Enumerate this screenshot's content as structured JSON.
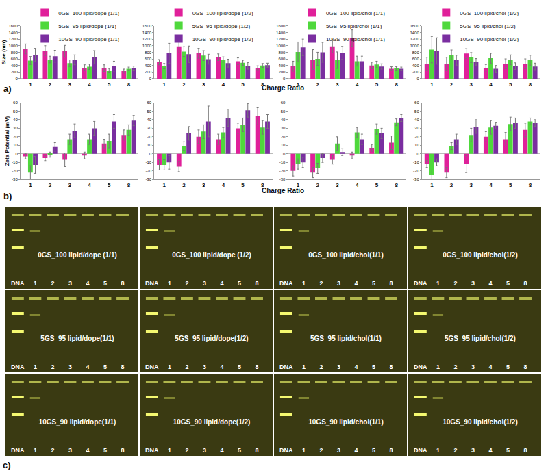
{
  "chart_data": [
    {
      "type": "bar",
      "y_label": "Size (nm)",
      "legend": "top-left",
      "categories": [
        "1",
        "2",
        "3",
        "4",
        "5",
        "8"
      ],
      "ylim": [
        0,
        1600
      ],
      "yticks": [
        0,
        200,
        400,
        600,
        800,
        1000,
        1200,
        1400,
        1600
      ],
      "series": [
        {
          "name": "0GS_100 lipid/dope (1/1)",
          "color": "#e0209a",
          "values": [
            900,
            850,
            830,
            330,
            320,
            230
          ],
          "errors": [
            150,
            150,
            180,
            90,
            100,
            60
          ]
        },
        {
          "name": "5GS_95 lipid/dope (1/1)",
          "color": "#4fd83c",
          "values": [
            550,
            580,
            470,
            360,
            250,
            300
          ],
          "errors": [
            120,
            100,
            100,
            80,
            60,
            50
          ]
        },
        {
          "name": "10GS_90 lipid/dope (1/1)",
          "color": "#7a2ea0",
          "values": [
            720,
            680,
            570,
            650,
            380,
            320
          ],
          "errors": [
            200,
            180,
            150,
            200,
            150,
            60
          ]
        }
      ]
    },
    {
      "type": "bar",
      "x_label": "Charge Ratio",
      "legend": "top-left",
      "categories": [
        "1",
        "2",
        "3",
        "4",
        "5",
        "8"
      ],
      "ylim": [
        0,
        1600
      ],
      "yticks": [
        0,
        200,
        400,
        600,
        800,
        1000,
        1200,
        1400,
        1600
      ],
      "series": [
        {
          "name": "0GS_100 lipid/dope (1/2)",
          "color": "#e0209a",
          "values": [
            500,
            980,
            770,
            650,
            530,
            330
          ],
          "errors": [
            80,
            200,
            150,
            100,
            100,
            60
          ]
        },
        {
          "name": "5GS_95 lipid/dope (1/2)",
          "color": "#4fd83c",
          "values": [
            380,
            820,
            700,
            580,
            480,
            400
          ],
          "errors": [
            80,
            150,
            150,
            80,
            80,
            60
          ]
        },
        {
          "name": "10GS_90 lipid/dope (1/2)",
          "color": "#7a2ea0",
          "values": [
            770,
            740,
            590,
            470,
            390,
            410
          ],
          "errors": [
            300,
            250,
            150,
            120,
            100,
            60
          ]
        }
      ]
    },
    {
      "type": "bar",
      "legend": "top-left",
      "categories": [
        "1",
        "2",
        "3",
        "4",
        "5",
        "8"
      ],
      "ylim": [
        0,
        1600
      ],
      "yticks": [
        0,
        200,
        400,
        600,
        800,
        1000,
        1200,
        1400,
        1600
      ],
      "series": [
        {
          "name": "0GS_100 lipid/chol (1/1)",
          "color": "#e0209a",
          "values": [
            380,
            580,
            980,
            1230,
            400,
            300
          ],
          "errors": [
            150,
            300,
            200,
            250,
            100,
            60
          ]
        },
        {
          "name": "5GS_95 lipid/chol (1/1)",
          "color": "#4fd83c",
          "values": [
            810,
            600,
            560,
            530,
            430,
            310
          ],
          "errors": [
            300,
            200,
            250,
            150,
            100,
            50
          ]
        },
        {
          "name": "10GS_90 lipid/chol (1/1)",
          "color": "#7a2ea0",
          "values": [
            950,
            800,
            780,
            530,
            370,
            300
          ],
          "errors": [
            250,
            300,
            200,
            150,
            80,
            50
          ]
        }
      ]
    },
    {
      "type": "bar",
      "legend": "top-left",
      "categories": [
        "1",
        "2",
        "3",
        "4",
        "5",
        "8"
      ],
      "ylim": [
        0,
        1600
      ],
      "yticks": [
        0,
        200,
        400,
        600,
        800,
        1000,
        1200,
        1400,
        1600
      ],
      "series": [
        {
          "name": "0GS_100 lipid/chol (1/2)",
          "color": "#e0209a",
          "values": [
            450,
            450,
            760,
            330,
            450,
            450
          ],
          "errors": [
            200,
            200,
            150,
            100,
            150,
            150
          ]
        },
        {
          "name": "5GS_95 lipid/chol (1/2)",
          "color": "#4fd83c",
          "values": [
            880,
            720,
            640,
            620,
            570,
            560
          ],
          "errors": [
            400,
            150,
            150,
            150,
            150,
            150
          ]
        },
        {
          "name": "10GS_90 lipid/chol (1/2)",
          "color": "#7a2ea0",
          "values": [
            840,
            560,
            510,
            300,
            380,
            370
          ],
          "errors": [
            400,
            150,
            100,
            100,
            100,
            100
          ]
        }
      ]
    },
    {
      "type": "bar",
      "y_label": "Zeta Potential (mV)",
      "categories": [
        "1",
        "2",
        "3",
        "4",
        "5",
        "8"
      ],
      "ylim": [
        -30,
        60
      ],
      "yticks": [
        -30,
        -20,
        -10,
        0,
        10,
        20,
        30,
        40,
        50,
        60
      ],
      "series": [
        {
          "color": "#e0209a",
          "values": [
            -3,
            -5,
            -7,
            -2,
            12,
            22
          ],
          "errors": [
            3,
            3,
            8,
            4,
            5,
            6
          ]
        },
        {
          "color": "#4fd83c",
          "values": [
            -22,
            -1,
            17,
            17,
            15,
            28
          ],
          "errors": [
            8,
            3,
            6,
            6,
            8,
            6
          ]
        },
        {
          "color": "#7a2ea0",
          "values": [
            -13,
            8,
            27,
            30,
            38,
            39
          ],
          "errors": [
            10,
            5,
            8,
            8,
            8,
            6
          ]
        }
      ]
    },
    {
      "type": "bar",
      "x_label": "Charge Ratio",
      "categories": [
        "1",
        "2",
        "3",
        "4",
        "5",
        "8"
      ],
      "ylim": [
        -30,
        60
      ],
      "yticks": [
        -30,
        -20,
        -10,
        0,
        10,
        20,
        30,
        40,
        50,
        60
      ],
      "series": [
        {
          "color": "#e0209a",
          "values": [
            -13,
            -15,
            20,
            17,
            30,
            44
          ],
          "errors": [
            6,
            6,
            8,
            6,
            6,
            10
          ]
        },
        {
          "color": "#4fd83c",
          "values": [
            -13,
            9,
            26,
            25,
            34,
            31
          ],
          "errors": [
            6,
            5,
            8,
            6,
            8,
            8
          ]
        },
        {
          "color": "#7a2ea0",
          "values": [
            -10,
            24,
            38,
            42,
            51,
            38
          ],
          "errors": [
            8,
            8,
            18,
            10,
            8,
            8
          ]
        }
      ]
    },
    {
      "type": "bar",
      "categories": [
        "1",
        "2",
        "3",
        "4",
        "5",
        "8"
      ],
      "ylim": [
        -30,
        60
      ],
      "yticks": [
        -30,
        -20,
        -10,
        0,
        10,
        20,
        30,
        40,
        50,
        60
      ],
      "series": [
        {
          "color": "#e0209a",
          "values": [
            -20,
            -22,
            -7,
            -2,
            7,
            13
          ],
          "errors": [
            6,
            6,
            5,
            4,
            4,
            8
          ]
        },
        {
          "color": "#4fd83c",
          "values": [
            -12,
            -17,
            12,
            25,
            29,
            37
          ],
          "errors": [
            6,
            6,
            8,
            6,
            6,
            4
          ]
        },
        {
          "color": "#7a2ea0",
          "values": [
            -10,
            -5,
            2,
            17,
            24,
            42
          ],
          "errors": [
            6,
            5,
            4,
            6,
            6,
            4
          ]
        }
      ]
    },
    {
      "type": "bar",
      "categories": [
        "1",
        "2",
        "3",
        "4",
        "5",
        "8"
      ],
      "ylim": [
        -30,
        60
      ],
      "yticks": [
        -30,
        -20,
        -10,
        0,
        10,
        20,
        30,
        40,
        50,
        60
      ],
      "series": [
        {
          "color": "#e0209a",
          "values": [
            -12,
            -22,
            -12,
            20,
            17,
            28
          ],
          "errors": [
            4,
            6,
            10,
            6,
            8,
            8
          ]
        },
        {
          "color": "#4fd83c",
          "values": [
            -25,
            9,
            22,
            31,
            35,
            38
          ],
          "errors": [
            6,
            4,
            8,
            8,
            8,
            4
          ]
        },
        {
          "color": "#7a2ea0",
          "values": [
            -10,
            17,
            32,
            33,
            36,
            36
          ],
          "errors": [
            4,
            6,
            8,
            4,
            6,
            4
          ]
        }
      ]
    }
  ],
  "panel_labels": [
    "a)",
    "b)",
    "c)"
  ],
  "gels": {
    "lanes": [
      "DNA",
      "1",
      "2",
      "3",
      "4",
      "5",
      "8"
    ],
    "panels": [
      [
        "0GS_100 lipid/dope (1/1)",
        "0GS_100 lipid/dope (1/2)",
        "0GS_100 lipid/chol(1/1)",
        "0GS_100 lipid/chol(1/2)"
      ],
      [
        "5GS_95 lipid/dope(1/1)",
        "5GS_95 lipid/dope(1/2)",
        "5GS_95 lipid/chol(1/1)",
        "5GS_95 lipid/chol(1/2)"
      ],
      [
        "10GS_90 lipid/dope(1/1)",
        "10GS_90 lipid/dope(1/2)",
        "10GS_90 lipid/chol(1/1)",
        "10GS_90 lipid/chol(1/2)"
      ]
    ]
  }
}
